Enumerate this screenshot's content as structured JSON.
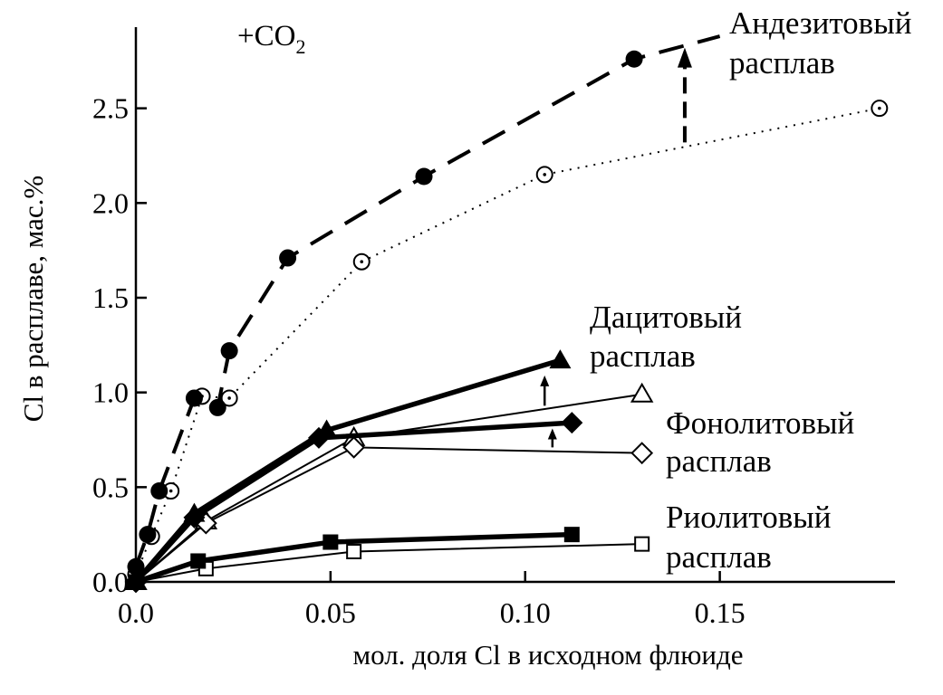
{
  "chart_data": {
    "type": "line",
    "xlabel": "мол. доля Cl в исходном флюиде",
    "ylabel": "Cl в расплаве, мас.%",
    "xlim": [
      0,
      0.195
    ],
    "ylim": [
      0,
      3.0
    ],
    "xticks": [
      {
        "value": 0.0,
        "label": "0.0"
      },
      {
        "value": 0.05,
        "label": "0.05"
      },
      {
        "value": 0.1,
        "label": "0.10"
      },
      {
        "value": 0.15,
        "label": "0.15"
      }
    ],
    "yticks": [
      {
        "value": 0.0,
        "label": "0.0"
      },
      {
        "value": 0.5,
        "label": "0.5"
      },
      {
        "value": 1.0,
        "label": "1.0"
      },
      {
        "value": 1.5,
        "label": "1.5"
      },
      {
        "value": 2.0,
        "label": "2.0"
      },
      {
        "value": 2.5,
        "label": "2.5"
      }
    ],
    "grid": false,
    "annotation": {
      "text": "+CO",
      "subscript": "2"
    },
    "series": [
      {
        "key": "andesite-co2",
        "marker": "filled-circle",
        "line": "dashed",
        "x": [
          0.0,
          0.003,
          0.006,
          0.015,
          0.021,
          0.024,
          0.039,
          0.074,
          0.128,
          0.15
        ],
        "y": [
          0.08,
          0.25,
          0.48,
          0.97,
          0.92,
          1.22,
          1.71,
          2.14,
          2.76,
          2.88
        ],
        "markers_until": 9
      },
      {
        "key": "andesite",
        "marker": "dotted-circle",
        "line": "dotted",
        "x": [
          0.0,
          0.004,
          0.009,
          0.017,
          0.024,
          0.058,
          0.105,
          0.191
        ],
        "y": [
          0.04,
          0.24,
          0.48,
          0.98,
          0.97,
          1.69,
          2.15,
          2.5
        ]
      },
      {
        "key": "dacite-co2",
        "marker": "filled-triangle",
        "line": "thick",
        "x": [
          0.0,
          0.015,
          0.049,
          0.109
        ],
        "y": [
          0.0,
          0.36,
          0.8,
          1.17
        ]
      },
      {
        "key": "dacite",
        "marker": "open-triangle",
        "line": "thin",
        "x": [
          0.0,
          0.018,
          0.056,
          0.13
        ],
        "y": [
          0.0,
          0.32,
          0.76,
          0.99
        ]
      },
      {
        "key": "phonolite-co2",
        "marker": "filled-diamond",
        "line": "thick",
        "x": [
          0.0,
          0.015,
          0.047,
          0.112
        ],
        "y": [
          0.0,
          0.34,
          0.76,
          0.84
        ]
      },
      {
        "key": "phonolite",
        "marker": "open-diamond",
        "line": "thin",
        "x": [
          0.0,
          0.018,
          0.056,
          0.13
        ],
        "y": [
          0.0,
          0.31,
          0.71,
          0.68
        ]
      },
      {
        "key": "rhyolite-co2",
        "marker": "filled-square",
        "line": "thick",
        "x": [
          0.0,
          0.016,
          0.05,
          0.112
        ],
        "y": [
          0.0,
          0.11,
          0.21,
          0.25
        ]
      },
      {
        "key": "rhyolite",
        "marker": "open-square",
        "line": "thin",
        "x": [
          0.0,
          0.018,
          0.056,
          0.13
        ],
        "y": [
          0.0,
          0.07,
          0.16,
          0.2
        ]
      }
    ],
    "arrows": [
      {
        "x": 0.141,
        "y_from": 2.32,
        "y_to": 2.82,
        "style": "dashed"
      },
      {
        "x": 0.105,
        "y_from": 0.93,
        "y_to": 1.09,
        "style": "solid"
      },
      {
        "x": 0.107,
        "y_from": 0.71,
        "y_to": 0.81,
        "style": "solid"
      }
    ],
    "labels": {
      "andesite": [
        "Андезитовый",
        "расплав"
      ],
      "dacite": [
        "Дацитовый",
        "расплав"
      ],
      "phonolite": [
        "Фонолитовый",
        "расплав"
      ],
      "rhyolite": [
        "Риолитовый",
        "расплав"
      ]
    }
  }
}
